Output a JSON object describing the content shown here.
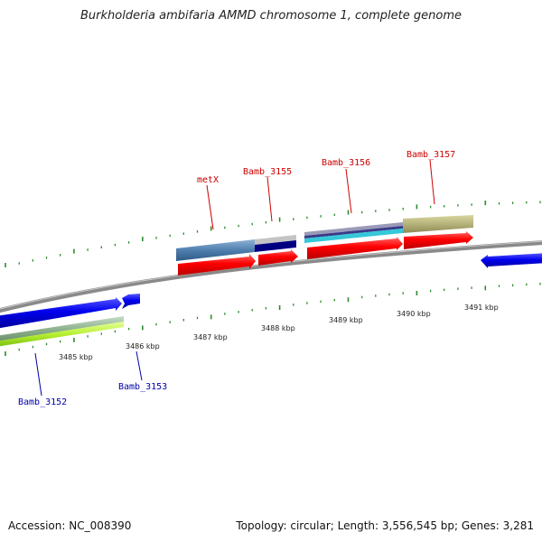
{
  "title": "Burkholderia ambifaria AMMD chromosome 1, complete genome",
  "footer": {
    "accession": "Accession: NC_008390",
    "summary": "Topology: circular; Length: 3,556,545 bp; Genes: 3,281"
  },
  "colors": {
    "backbone": "#8a8a8a",
    "tick": "#2e8b2e",
    "label_reverse_strand": "#cc0000",
    "label_forward_strand": "#0000aa"
  },
  "kbp_labels": [
    "3485 kbp",
    "3486 kbp",
    "3487 kbp",
    "3488 kbp",
    "3489 kbp",
    "3490 kbp",
    "3491 kbp"
  ],
  "genes": [
    {
      "id": "Bamb_3152",
      "label": "Bamb_3152"
    },
    {
      "id": "Bamb_3153",
      "label": "Bamb_3153"
    },
    {
      "id": "metX",
      "label": "metX"
    },
    {
      "id": "Bamb_3155",
      "label": "Bamb_3155"
    },
    {
      "id": "Bamb_3156",
      "label": "Bamb_3156"
    },
    {
      "id": "Bamb_3157",
      "label": "Bamb_3157"
    }
  ]
}
